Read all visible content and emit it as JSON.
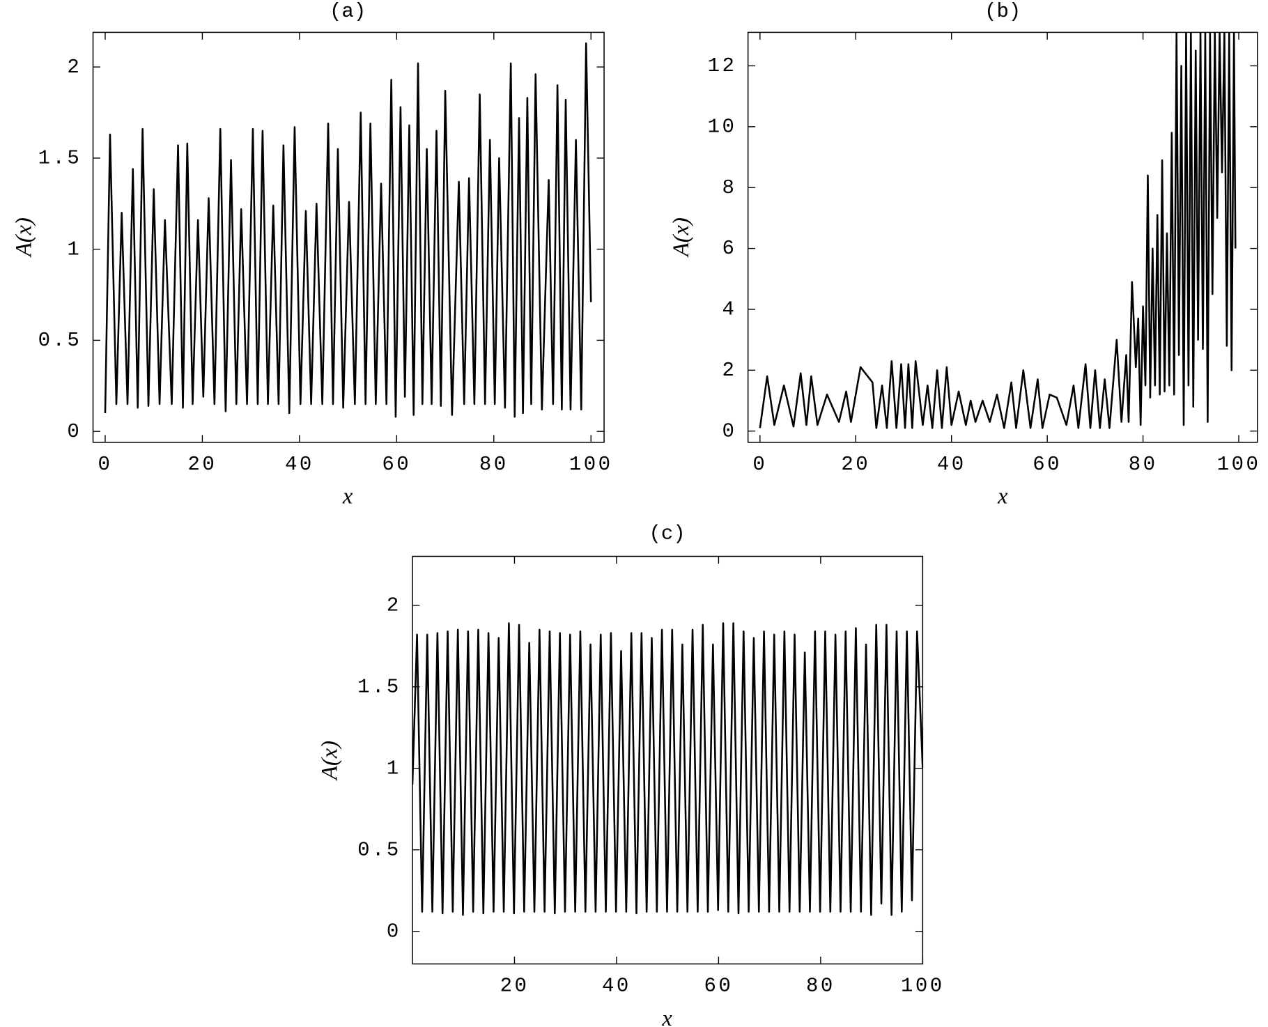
{
  "chart_data": [
    {
      "type": "line",
      "title": "(a)",
      "xlabel": "x",
      "ylabel": "A(x)",
      "color": "#000000",
      "xlim": [
        -2.5,
        102.7
      ],
      "ylim": [
        -0.06,
        2.19
      ],
      "xticks": [
        0,
        20,
        40,
        60,
        80,
        100
      ],
      "yticks": [
        0,
        0.5,
        1,
        1.5,
        2
      ],
      "x": [
        0,
        1.0,
        2.3,
        3.4,
        4.6,
        5.7,
        6.7,
        7.7,
        8.9,
        10.0,
        11.2,
        12.3,
        13.7,
        15.0,
        16.0,
        16.9,
        18.0,
        19.1,
        20.2,
        21.3,
        22.5,
        23.7,
        24.8,
        25.9,
        27.0,
        28.0,
        29.2,
        30.4,
        31.4,
        32.4,
        33.5,
        34.6,
        35.7,
        36.7,
        37.9,
        39.0,
        40.2,
        41.3,
        42.4,
        43.5,
        44.7,
        45.9,
        46.9,
        47.9,
        49.0,
        50.2,
        51.4,
        52.6,
        53.6,
        54.6,
        55.7,
        56.8,
        57.9,
        58.9,
        59.8,
        60.8,
        61.7,
        62.6,
        63.5,
        64.4,
        65.3,
        66.2,
        67.2,
        68.2,
        69.1,
        70.0,
        71.4,
        72.8,
        73.9,
        74.9,
        76.0,
        77.1,
        78.2,
        79.2,
        80.2,
        81.1,
        82.3,
        83.5,
        84.3,
        85.2,
        86.0,
        86.9,
        87.7,
        88.6,
        89.9,
        91.3,
        92.2,
        93.1,
        94.0,
        94.8,
        95.8,
        96.9,
        98.0,
        99.0,
        100
      ],
      "values": [
        0.1,
        1.63,
        0.15,
        1.2,
        0.15,
        1.44,
        0.13,
        1.66,
        0.14,
        1.33,
        0.15,
        1.16,
        0.15,
        1.57,
        0.13,
        1.58,
        0.15,
        1.16,
        0.19,
        1.28,
        0.15,
        1.66,
        0.11,
        1.49,
        0.15,
        1.22,
        0.15,
        1.66,
        0.15,
        1.65,
        0.15,
        1.24,
        0.15,
        1.57,
        0.1,
        1.67,
        0.15,
        1.21,
        0.15,
        1.25,
        0.15,
        1.69,
        0.15,
        1.55,
        0.13,
        1.26,
        0.15,
        1.75,
        0.15,
        1.69,
        0.15,
        1.36,
        0.15,
        1.93,
        0.08,
        1.78,
        0.19,
        1.68,
        0.09,
        2.02,
        0.15,
        1.55,
        0.15,
        1.65,
        0.14,
        1.87,
        0.09,
        1.37,
        0.15,
        1.39,
        0.15,
        1.85,
        0.15,
        1.6,
        0.15,
        1.5,
        0.13,
        2.02,
        0.08,
        1.72,
        0.1,
        1.83,
        0.15,
        1.96,
        0.12,
        1.38,
        0.15,
        1.9,
        0.12,
        1.82,
        0.12,
        1.6,
        0.12,
        2.13,
        0.71
      ]
    },
    {
      "type": "line",
      "title": "(b)",
      "xlabel": "x",
      "ylabel": "A(x)",
      "color": "#000000",
      "xlim": [
        -2.5,
        103.9
      ],
      "ylim": [
        -0.37,
        13.1
      ],
      "xticks": [
        0,
        20,
        40,
        60,
        80,
        100
      ],
      "yticks": [
        0,
        2,
        4,
        6,
        8,
        10,
        12
      ],
      "x": [
        0,
        1.5,
        3,
        5,
        7,
        8.5,
        9.7,
        10.7,
        12,
        14,
        16.5,
        18,
        19,
        21,
        23.5,
        24.3,
        25.5,
        26.5,
        27.5,
        28.5,
        29.5,
        30.3,
        31,
        31.8,
        32.5,
        34,
        35,
        36,
        37,
        38,
        39,
        40,
        41.5,
        43,
        44,
        45,
        46.5,
        48,
        49.5,
        51,
        52.5,
        53.5,
        55,
        56.5,
        58,
        59,
        60.5,
        62,
        64,
        65.5,
        66.5,
        68,
        69,
        70,
        71,
        72,
        73,
        74.5,
        75.5,
        76.5,
        77,
        77.7,
        78.5,
        79,
        79.5,
        80,
        80.5,
        81,
        81.5,
        82,
        82.5,
        83,
        83.5,
        84,
        84.5,
        85,
        85.5,
        86,
        86.5,
        87,
        87.5,
        88,
        88.5,
        89,
        89.5,
        90,
        90.5,
        91,
        91.5,
        92,
        92.5,
        93,
        93.5,
        94,
        94.5,
        95,
        95.5,
        96,
        96.5,
        97,
        97.5,
        98,
        98.5,
        99,
        99.3
      ],
      "values": [
        0.1,
        1.8,
        0.2,
        1.5,
        0.15,
        1.9,
        0.2,
        1.8,
        0.2,
        1.2,
        0.3,
        1.3,
        0.3,
        2.1,
        1.6,
        0.1,
        1.5,
        0.1,
        2.3,
        0.1,
        2.2,
        0.1,
        2.2,
        0.1,
        2.3,
        0.2,
        1.5,
        0.1,
        2.0,
        0.1,
        2.1,
        0.2,
        1.3,
        0.2,
        1.0,
        0.3,
        1.0,
        0.3,
        1.2,
        0.1,
        1.6,
        0.1,
        2.0,
        0.1,
        1.7,
        0.1,
        1.2,
        1.1,
        0.2,
        1.5,
        0.1,
        2.2,
        0.1,
        2.0,
        0.1,
        1.7,
        0.1,
        3.0,
        0.3,
        2.5,
        0.3,
        4.9,
        2.1,
        3.7,
        0.2,
        4.1,
        1.5,
        8.4,
        1.1,
        6.0,
        1.5,
        7.1,
        1.2,
        8.9,
        1.3,
        6.5,
        1.5,
        9.8,
        1.2,
        13.1,
        2.5,
        12.0,
        0.2,
        13.1,
        1.5,
        13.1,
        0.8,
        12.5,
        3.0,
        13.1,
        2.7,
        13.1,
        0.3,
        13.1,
        4.5,
        13.1,
        7.0,
        13.1,
        8.5,
        13.1,
        2.8,
        13.1,
        2.0,
        13.1,
        6.0
      ]
    },
    {
      "type": "line",
      "title": "(c)",
      "xlabel": "x",
      "ylabel": "A(x)",
      "color": "#000000",
      "xlim": [
        0,
        100
      ],
      "ylim": [
        -0.2,
        2.3
      ],
      "xticks": [
        20,
        40,
        60,
        80,
        100
      ],
      "yticks": [
        0,
        0.5,
        1,
        1.5,
        2
      ],
      "x": [
        0,
        0.9,
        1.9,
        2.9,
        3.9,
        4.9,
        5.9,
        6.9,
        7.9,
        8.9,
        9.9,
        10.9,
        11.9,
        12.9,
        13.9,
        14.9,
        15.9,
        16.9,
        17.9,
        18.9,
        19.9,
        20.9,
        21.9,
        22.9,
        23.9,
        24.9,
        25.9,
        26.9,
        27.9,
        28.9,
        29.9,
        30.9,
        31.9,
        32.9,
        33.9,
        34.9,
        35.9,
        36.9,
        37.9,
        38.9,
        39.9,
        40.9,
        41.9,
        42.9,
        43.9,
        44.9,
        45.9,
        46.9,
        47.9,
        48.9,
        49.9,
        50.9,
        51.9,
        52.9,
        53.9,
        54.9,
        55.9,
        56.9,
        57.9,
        58.9,
        59.9,
        60.9,
        61.9,
        62.9,
        63.9,
        64.9,
        65.9,
        66.9,
        67.9,
        68.9,
        69.9,
        70.9,
        71.9,
        72.9,
        73.9,
        74.9,
        75.9,
        76.9,
        77.9,
        78.9,
        79.9,
        80.9,
        81.9,
        82.9,
        83.9,
        84.9,
        85.9,
        86.9,
        87.9,
        88.9,
        89.9,
        90.9,
        91.9,
        92.9,
        93.9,
        94.9,
        95.9,
        96.9,
        97.9,
        98.9,
        100
      ],
      "values": [
        0.9,
        1.82,
        0.12,
        1.82,
        0.12,
        1.83,
        0.11,
        1.84,
        0.12,
        1.85,
        0.1,
        1.84,
        0.12,
        1.85,
        0.11,
        1.83,
        0.12,
        1.8,
        0.12,
        1.89,
        0.11,
        1.88,
        0.12,
        1.77,
        0.12,
        1.85,
        0.12,
        1.84,
        0.11,
        1.83,
        0.12,
        1.82,
        0.12,
        1.84,
        0.12,
        1.76,
        0.12,
        1.82,
        0.12,
        1.83,
        0.12,
        1.72,
        0.12,
        1.83,
        0.11,
        1.83,
        0.12,
        1.8,
        0.12,
        1.85,
        0.12,
        1.85,
        0.12,
        1.76,
        0.12,
        1.85,
        0.12,
        1.88,
        0.12,
        1.76,
        0.13,
        1.89,
        0.12,
        1.89,
        0.11,
        1.84,
        0.12,
        1.8,
        0.12,
        1.84,
        0.12,
        1.82,
        0.12,
        1.84,
        0.12,
        1.82,
        0.12,
        1.71,
        0.12,
        1.84,
        0.12,
        1.84,
        0.12,
        1.82,
        0.12,
        1.84,
        0.12,
        1.86,
        0.12,
        1.76,
        0.1,
        1.88,
        0.17,
        1.88,
        0.1,
        1.84,
        0.12,
        1.84,
        0.19,
        1.84,
        1.0
      ]
    }
  ]
}
